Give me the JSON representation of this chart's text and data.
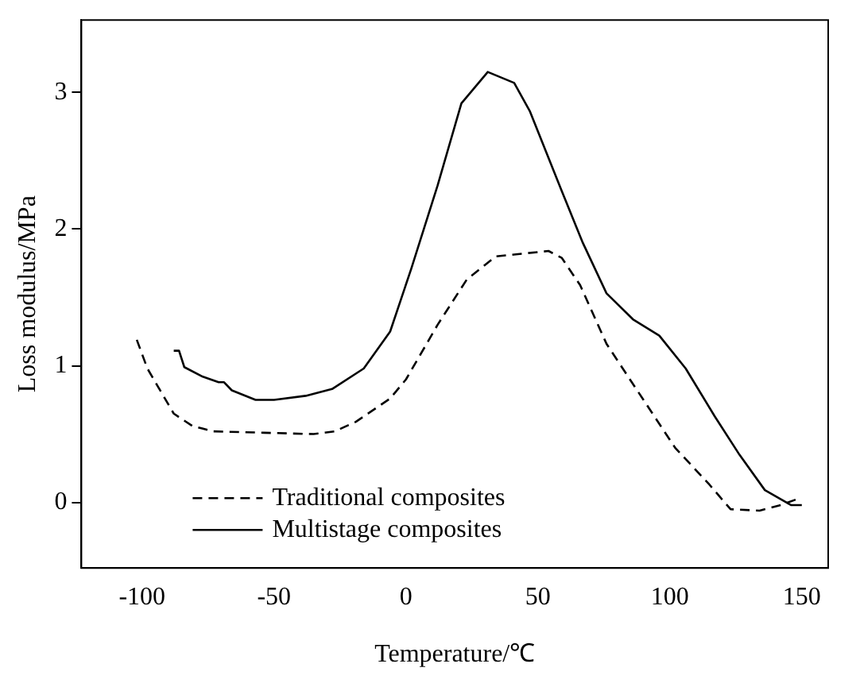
{
  "chart_data": {
    "type": "line",
    "xlabel": "Temperature/℃",
    "ylabel": "Loss modulus/MPa",
    "xlim": [
      -123,
      160
    ],
    "ylim": [
      -0.48,
      3.53
    ],
    "xticks": [
      -100,
      -50,
      0,
      50,
      100,
      150
    ],
    "yticks": [
      0,
      1,
      2,
      3
    ],
    "grid": false,
    "legend": "bottom left",
    "marker": "none",
    "series": [
      {
        "name": "Traditional composites",
        "color": "#000000",
        "line_style": "dashed",
        "x": [
          -102,
          -98,
          -88,
          -81,
          -73,
          -54,
          -35,
          -27,
          -19,
          -6,
          0,
          12,
          23,
          34,
          54,
          59,
          66,
          76,
          90,
          102,
          115,
          123,
          134,
          142,
          149
        ],
        "values": [
          1.19,
          0.98,
          0.65,
          0.56,
          0.52,
          0.51,
          0.5,
          0.52,
          0.59,
          0.76,
          0.9,
          1.3,
          1.63,
          1.8,
          1.84,
          1.79,
          1.59,
          1.16,
          0.75,
          0.4,
          0.13,
          -0.05,
          -0.06,
          -0.02,
          0.03
        ]
      },
      {
        "name": "Multistage composites",
        "color": "#000000",
        "line_style": "solid",
        "x": [
          -88,
          -86,
          -84,
          -77,
          -71,
          -69,
          -66,
          -57,
          -50,
          -38,
          -28,
          -16,
          -6,
          2,
          12,
          21,
          31,
          41,
          47,
          59,
          67,
          76,
          86,
          96,
          106,
          117,
          126,
          136,
          146,
          150
        ],
        "values": [
          1.11,
          1.11,
          0.99,
          0.92,
          0.88,
          0.88,
          0.82,
          0.75,
          0.75,
          0.78,
          0.83,
          0.98,
          1.25,
          1.71,
          2.32,
          2.92,
          3.15,
          3.07,
          2.86,
          2.28,
          1.9,
          1.53,
          1.34,
          1.22,
          0.98,
          0.63,
          0.36,
          0.09,
          -0.02,
          -0.02
        ]
      }
    ]
  }
}
